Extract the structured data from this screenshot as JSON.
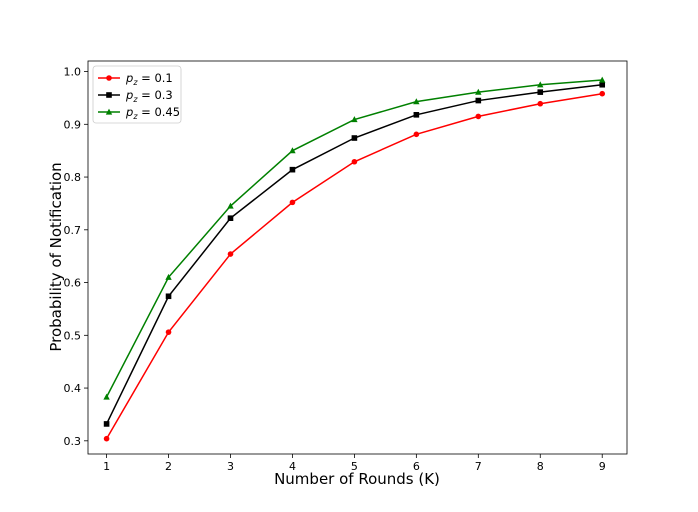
{
  "chart_data": {
    "type": "line",
    "xlabel": "Number of Rounds (K)",
    "ylabel": "Probability of Notification",
    "x": [
      1,
      2,
      3,
      4,
      5,
      6,
      7,
      8,
      9
    ],
    "xlim": [
      0.7,
      9.4
    ],
    "ylim": [
      0.275,
      1.02
    ],
    "xticks": [
      "1",
      "2",
      "3",
      "4",
      "5",
      "6",
      "7",
      "8",
      "9"
    ],
    "yticks": [
      "0.3",
      "0.4",
      "0.5",
      "0.6",
      "0.7",
      "0.8",
      "0.9",
      "1.0"
    ],
    "grid": false,
    "legend": "top-left",
    "series": [
      {
        "name": "p_z = 0.1",
        "var": "p",
        "sub": "z",
        "rhs": " = 0.1",
        "color": "#ff0000",
        "marker": "circle",
        "values": [
          0.304,
          0.506,
          0.654,
          0.752,
          0.829,
          0.881,
          0.915,
          0.939,
          0.958
        ]
      },
      {
        "name": "p_z = 0.3",
        "var": "p",
        "sub": "z",
        "rhs": " = 0.3",
        "color": "#000000",
        "marker": "square",
        "values": [
          0.332,
          0.574,
          0.722,
          0.814,
          0.874,
          0.918,
          0.945,
          0.961,
          0.975
        ]
      },
      {
        "name": "p_z = 0.45",
        "var": "p",
        "sub": "z",
        "rhs": " = 0.45",
        "color": "#008000",
        "marker": "triangle",
        "values": [
          0.383,
          0.61,
          0.745,
          0.85,
          0.909,
          0.943,
          0.961,
          0.975,
          0.984
        ]
      }
    ]
  }
}
